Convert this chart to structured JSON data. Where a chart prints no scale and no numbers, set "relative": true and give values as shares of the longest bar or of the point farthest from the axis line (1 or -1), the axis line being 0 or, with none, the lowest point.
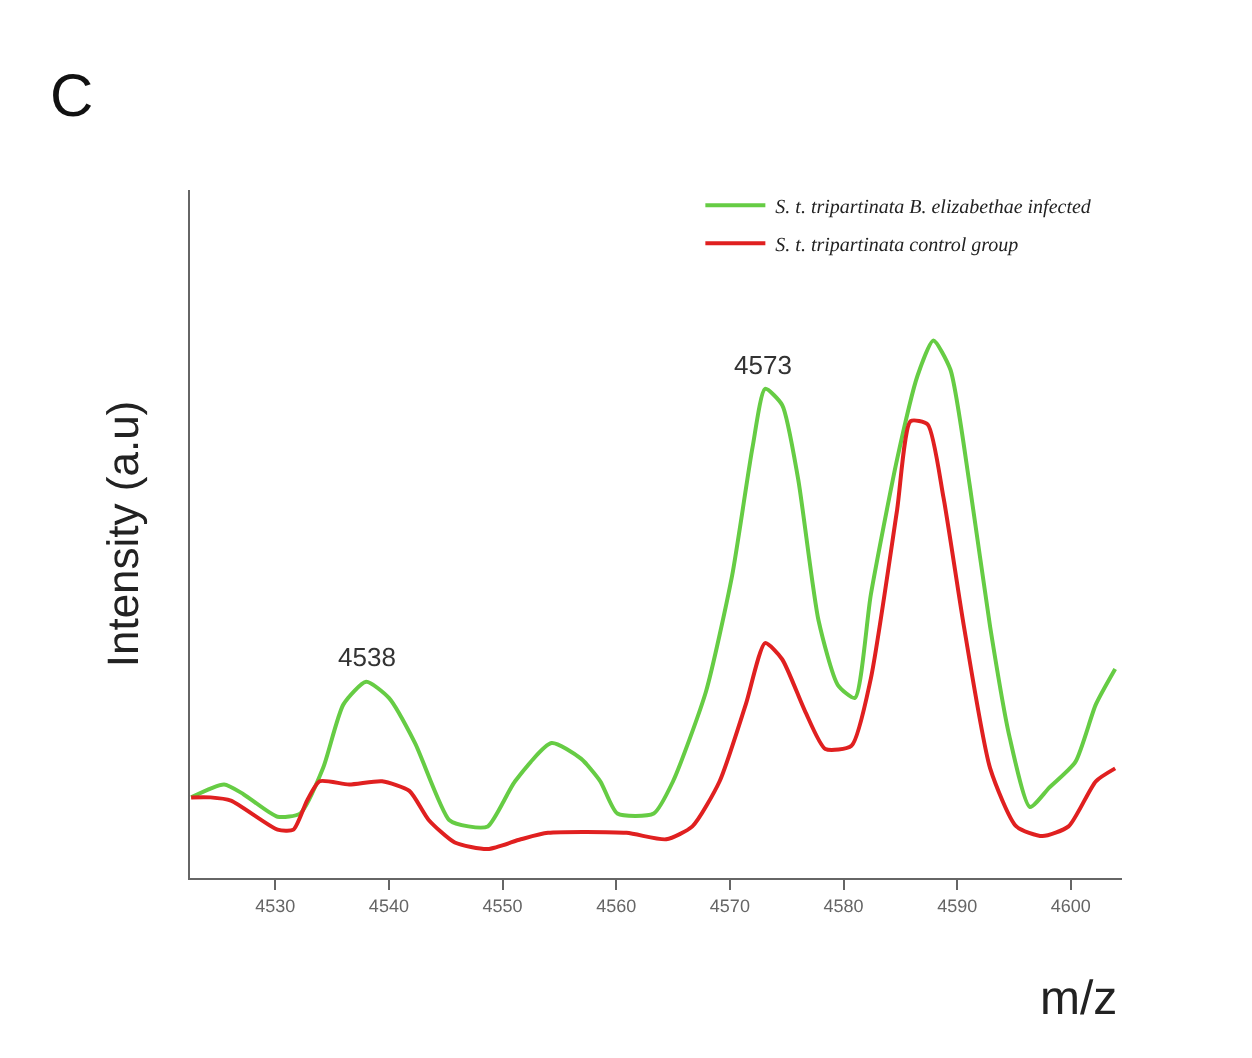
{
  "chart_data": {
    "type": "line",
    "title": "C",
    "xlabel": "m/z",
    "ylabel": "Intensity (a.u)",
    "relative": true,
    "tick_labels": "x",
    "legend": "top right",
    "marker": "none",
    "line_style": "solid",
    "xlim": [
      4522.5,
      4604.5
    ],
    "xticks": [
      4530,
      4540,
      4550,
      4560,
      4570,
      4580,
      4590,
      4600
    ],
    "series": [
      {
        "name": "S. t. tripartinata B. elizabethae infected",
        "color": "#66cc44",
        "x": [
          4522.6,
          4525.5,
          4527.2,
          4530.2,
          4532.2,
          4534.2,
          4536.0,
          4538.0,
          4540.0,
          4542.3,
          4545.3,
          4547.0,
          4548.7,
          4551.1,
          4554.3,
          4556.9,
          4558.6,
          4560.1,
          4563.3,
          4565.0,
          4567.9,
          4570.2,
          4572.0,
          4573.1,
          4574.6,
          4576.0,
          4577.8,
          4579.5,
          4581.0,
          4582.4,
          4584.7,
          4586.5,
          4587.9,
          4589.4,
          4591.1,
          4592.9,
          4594.6,
          4596.4,
          4598.1,
          4600.4,
          4602.2,
          4603.9
        ],
        "values": [
          0.15,
          0.174,
          0.156,
          0.114,
          0.12,
          0.204,
          0.323,
          0.365,
          0.335,
          0.251,
          0.108,
          0.096,
          0.096,
          0.18,
          0.251,
          0.222,
          0.18,
          0.12,
          0.12,
          0.18,
          0.347,
          0.563,
          0.802,
          0.91,
          0.88,
          0.743,
          0.479,
          0.359,
          0.335,
          0.527,
          0.778,
          0.934,
          1.0,
          0.946,
          0.731,
          0.467,
          0.263,
          0.132,
          0.168,
          0.216,
          0.323,
          0.389
        ]
      },
      {
        "name": "S. t. tripartinata control group",
        "color": "#e02020",
        "x": [
          4522.6,
          4524.3,
          4526.1,
          4530.2,
          4531.6,
          4532.8,
          4533.9,
          4536.5,
          4539.4,
          4541.8,
          4543.5,
          4545.8,
          4548.7,
          4551.6,
          4554.0,
          4560.9,
          4564.4,
          4566.7,
          4569.1,
          4571.4,
          4573.1,
          4574.6,
          4576.6,
          4578.4,
          4580.7,
          4582.4,
          4584.7,
          4585.9,
          4587.4,
          4588.8,
          4590.6,
          4592.9,
          4595.2,
          4597.5,
          4599.8,
          4602.2,
          4603.9
        ],
        "values": [
          0.15,
          0.15,
          0.144,
          0.09,
          0.09,
          0.144,
          0.18,
          0.174,
          0.18,
          0.162,
          0.108,
          0.066,
          0.054,
          0.072,
          0.084,
          0.084,
          0.072,
          0.096,
          0.18,
          0.323,
          0.437,
          0.407,
          0.311,
          0.24,
          0.246,
          0.371,
          0.683,
          0.85,
          0.844,
          0.707,
          0.467,
          0.204,
          0.096,
          0.078,
          0.096,
          0.18,
          0.204
        ]
      }
    ],
    "annotations": [
      {
        "text": "4538",
        "x": 4538,
        "y": 0.365
      },
      {
        "text": "4573",
        "x": 4573,
        "y": 0.91
      }
    ]
  }
}
